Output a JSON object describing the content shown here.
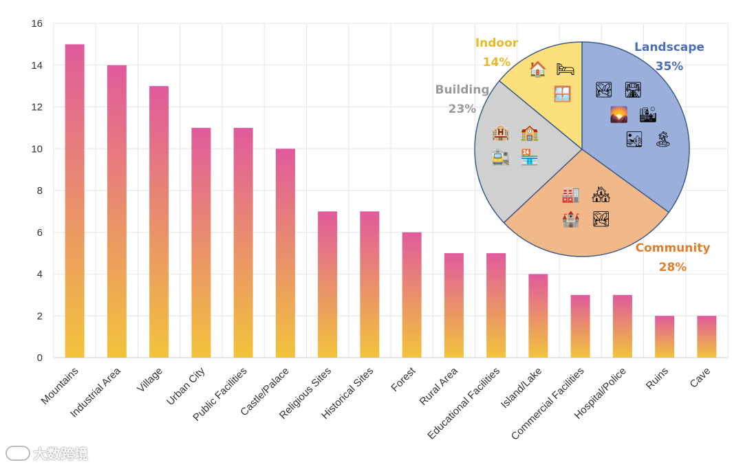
{
  "chart_data": [
    {
      "type": "bar",
      "categories": [
        "Mountains",
        "Industrial Area",
        "Village",
        "Urban City",
        "Public Facilities",
        "Castle/Palace",
        "Religious Sites",
        "Historical Sites",
        "Forest",
        "Rural Area",
        "Educational Facilities",
        "Island/Lake",
        "Commercial Facilities",
        "Hospital/Police",
        "Ruins",
        "Cave"
      ],
      "values": [
        15,
        14,
        13,
        11,
        11,
        10,
        7,
        7,
        6,
        5,
        5,
        4,
        3,
        3,
        2,
        2
      ],
      "ylim": [
        0,
        16
      ],
      "yticks": [
        0,
        2,
        4,
        6,
        8,
        10,
        12,
        14,
        16
      ],
      "grid": true,
      "title": "",
      "xlabel": "",
      "ylabel": "",
      "bar_gradient": {
        "top": "#e05a9c",
        "bottom": "#f2c33c"
      }
    },
    {
      "type": "pie",
      "slices": [
        {
          "label": "Landscape",
          "value": 35,
          "text": "35%",
          "color": "#9aafd9",
          "label_color": "#4a6fb8",
          "icons": [
            "🏞",
            "🛣",
            "🌄",
            "🏙",
            "🏜",
            "🏝"
          ]
        },
        {
          "label": "Community",
          "value": 28,
          "text": "28%",
          "color": "#f1b88a",
          "label_color": "#e07e2e",
          "icons": [
            "🏭",
            "🏘",
            "🏰",
            "🏞"
          ]
        },
        {
          "label": "Building",
          "value": 23,
          "text": "23%",
          "color": "#d0d0d0",
          "label_color": "#9a9a9a",
          "icons": [
            "🏨",
            "🏫",
            "🚉",
            "🏪"
          ]
        },
        {
          "label": "Indoor",
          "value": 14,
          "text": "14%",
          "color": "#fbe07d",
          "label_color": "#e8b928",
          "icons": [
            "🏠",
            "🛏",
            "🪟"
          ]
        }
      ],
      "edge_color": "#3d5a8a"
    }
  ],
  "watermark": {
    "text": "大数跨境"
  }
}
